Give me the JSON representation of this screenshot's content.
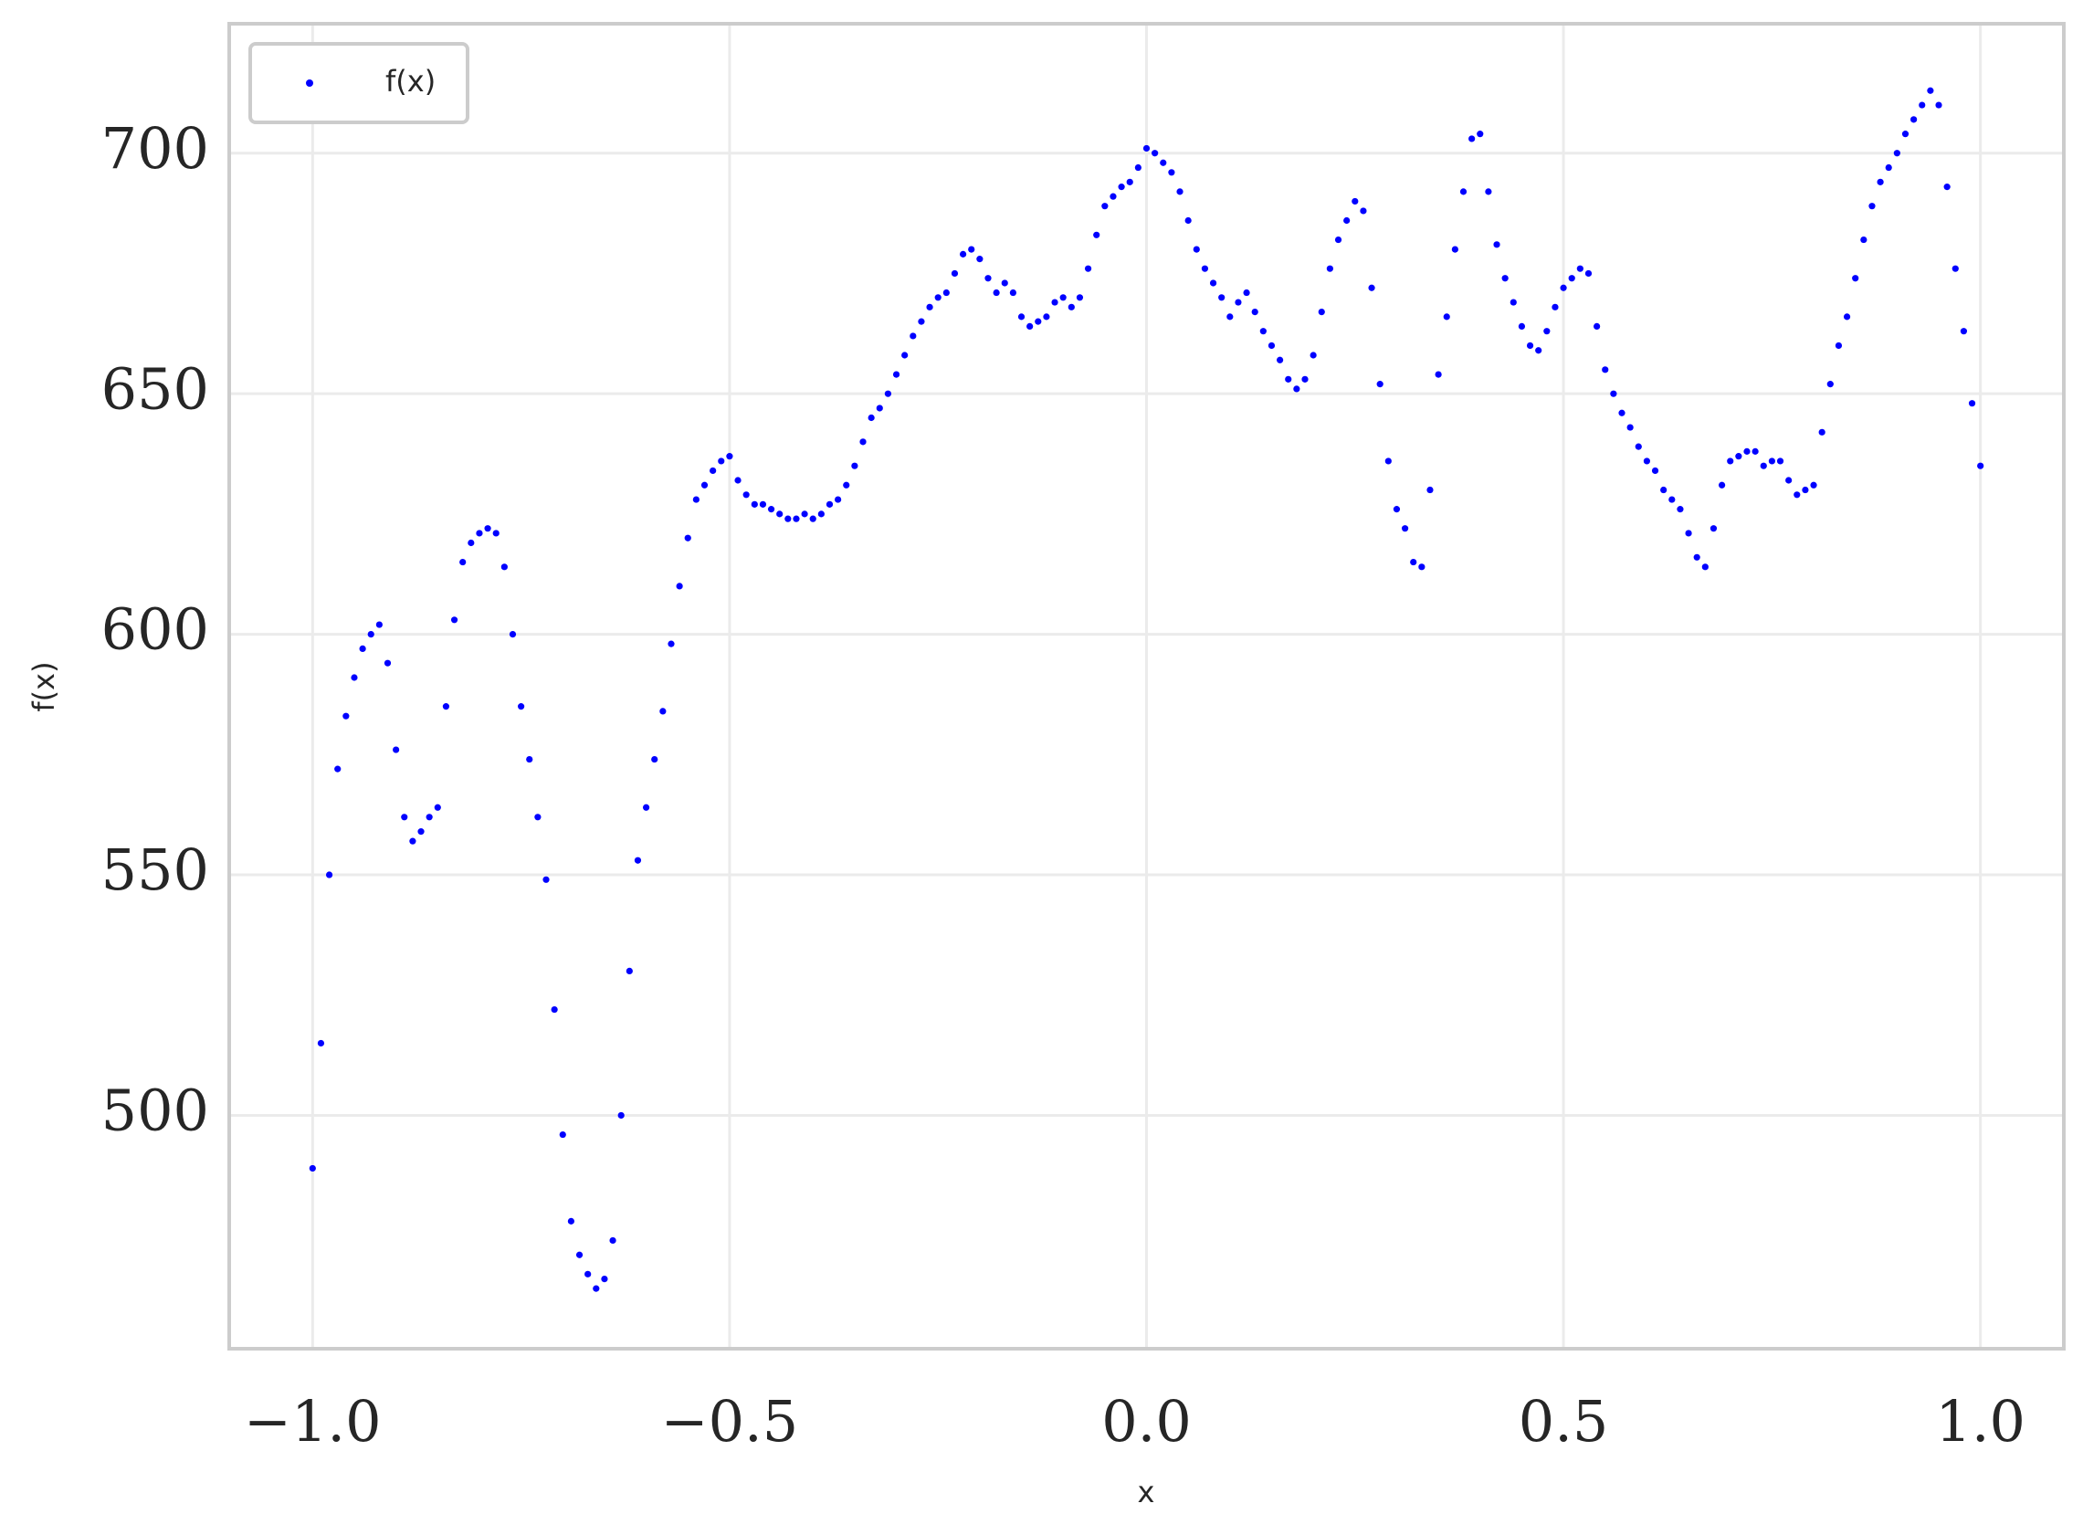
{
  "chart_data": {
    "type": "scatter",
    "xlabel": "x",
    "ylabel": "f(x)",
    "xlim": [
      -1.1,
      1.1
    ],
    "ylim": [
      451.5,
      726.9
    ],
    "xticks": [
      {
        "value": -1,
        "label": "−1.0"
      },
      {
        "value": -0.5,
        "label": "−0.5"
      },
      {
        "value": 0,
        "label": "0.0"
      },
      0.5,
      {
        "value": 1,
        "label": "1.0"
      }
    ],
    "yticks": [
      500,
      550,
      600,
      650,
      700
    ],
    "grid": true,
    "legend": "upper left",
    "series": [
      {
        "name": "f(x)",
        "color": "#0000ff",
        "x": [
          -1,
          -0.99,
          -0.98,
          -0.97,
          -0.96,
          -0.95,
          -0.94,
          -0.93,
          -0.92,
          -0.91,
          -0.9,
          -0.89,
          -0.88,
          -0.87,
          -0.86,
          -0.85,
          -0.84,
          -0.83,
          -0.82,
          -0.81,
          -0.8,
          -0.79,
          -0.78,
          -0.77,
          -0.76,
          -0.75,
          -0.74,
          -0.73,
          -0.72,
          -0.71,
          -0.7,
          -0.69,
          -0.68,
          -0.67,
          -0.66,
          -0.65,
          -0.64,
          -0.63,
          -0.62,
          -0.61,
          -0.6,
          -0.59,
          -0.58,
          -0.57,
          -0.56,
          -0.55,
          -0.54,
          -0.53,
          -0.52,
          -0.51,
          -0.5,
          -0.49,
          -0.48,
          -0.47,
          -0.46,
          -0.45,
          -0.44,
          -0.43,
          -0.42,
          -0.41,
          -0.4,
          -0.39,
          -0.38,
          -0.37,
          -0.36,
          -0.35,
          -0.34,
          -0.33,
          -0.32,
          -0.31,
          -0.3,
          -0.29,
          -0.28,
          -0.27,
          -0.26,
          -0.25,
          -0.24,
          -0.23,
          -0.22,
          -0.21,
          -0.2,
          -0.19,
          -0.18,
          -0.17,
          -0.16,
          -0.15,
          -0.14,
          -0.13,
          -0.12,
          -0.11,
          -0.1,
          -0.09,
          -0.08,
          -0.07,
          -0.06,
          -0.05,
          -0.04,
          -0.03,
          -0.02,
          -0.01,
          0,
          0.01,
          0.02,
          0.03,
          0.04,
          0.05,
          0.06,
          0.07,
          0.08,
          0.09,
          0.1,
          0.11,
          0.12,
          0.13,
          0.14,
          0.15,
          0.16,
          0.17,
          0.18,
          0.19,
          0.2,
          0.21,
          0.22,
          0.23,
          0.24,
          0.25,
          0.26,
          0.27,
          0.28,
          0.29,
          0.3,
          0.31,
          0.32,
          0.33,
          0.34,
          0.35,
          0.36,
          0.37,
          0.38,
          0.39,
          0.4,
          0.41,
          0.42,
          0.43,
          0.44,
          0.45,
          0.46,
          0.47,
          0.48,
          0.49,
          0.5,
          0.51,
          0.52,
          0.53,
          0.54,
          0.55,
          0.56,
          0.57,
          0.58,
          0.59,
          0.6,
          0.61,
          0.62,
          0.63,
          0.64,
          0.65,
          0.66,
          0.67,
          0.68,
          0.69,
          0.7,
          0.71,
          0.72,
          0.73,
          0.74,
          0.75,
          0.76,
          0.77,
          0.78,
          0.79,
          0.8,
          0.81,
          0.82,
          0.83,
          0.84,
          0.85,
          0.86,
          0.87,
          0.88,
          0.89,
          0.9,
          0.91,
          0.92,
          0.93,
          0.94,
          0.95,
          0.96,
          0.97,
          0.98,
          0.99,
          1
        ],
        "values": [
          489,
          515,
          550,
          572,
          583,
          591,
          597,
          600,
          602,
          594,
          576,
          562,
          557,
          559,
          562,
          564,
          585,
          603,
          615,
          619,
          621,
          622,
          621,
          614,
          600,
          585,
          574,
          562,
          549,
          522,
          496,
          478,
          471,
          467,
          464,
          466,
          474,
          500,
          530,
          553,
          564,
          574,
          584,
          598,
          610,
          620,
          628,
          631,
          634,
          636,
          637,
          632,
          629,
          627,
          627,
          626,
          625,
          624,
          624,
          625,
          624,
          625,
          627,
          628,
          631,
          635,
          640,
          645,
          647,
          650,
          654,
          658,
          662,
          665,
          668,
          670,
          671,
          675,
          679,
          680,
          678,
          674,
          671,
          673,
          671,
          666,
          664,
          665,
          666,
          669,
          670,
          668,
          670,
          676,
          683,
          689,
          691,
          693,
          694,
          697,
          701,
          700,
          698,
          696,
          692,
          686,
          680,
          676,
          673,
          670,
          666,
          669,
          671,
          667,
          663,
          660,
          657,
          653,
          651,
          653,
          658,
          667,
          676,
          682,
          686,
          690,
          688,
          672,
          652,
          636,
          626,
          622,
          615,
          614,
          630,
          654,
          666,
          680,
          692,
          703,
          704,
          692,
          681,
          674,
          669,
          664,
          660,
          659,
          663,
          668,
          672,
          674,
          676,
          675,
          664,
          655,
          650,
          646,
          643,
          639,
          636,
          634,
          630,
          628,
          626,
          621,
          616,
          614,
          622,
          631,
          636,
          637,
          638,
          638,
          635,
          636,
          636,
          632,
          629,
          630,
          631,
          642,
          652,
          660,
          666,
          674,
          682,
          689,
          694,
          697,
          700,
          704,
          707,
          710,
          713,
          710,
          693,
          676,
          663,
          648,
          635
        ]
      }
    ]
  }
}
